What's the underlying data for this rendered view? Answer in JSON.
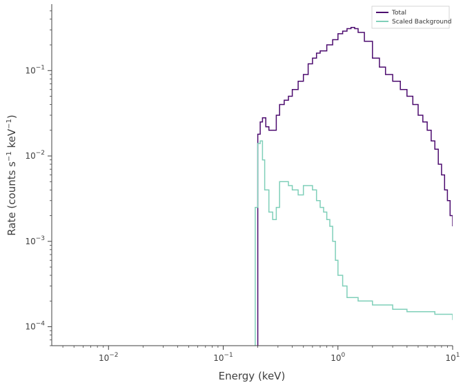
{
  "chart_data": {
    "type": "line",
    "title": "",
    "xlabel": "Energy (keV)",
    "ylabel_parts": [
      "Rate (counts s",
      "−1",
      " keV",
      "−1",
      ")"
    ],
    "x_scale": "log",
    "y_scale": "log",
    "xlim": [
      0.0032,
      10
    ],
    "ylim": [
      6e-05,
      0.6
    ],
    "x_ticks": [
      {
        "value": 0.01,
        "base": "10",
        "exp": "−2"
      },
      {
        "value": 0.1,
        "base": "10",
        "exp": "−1"
      },
      {
        "value": 1,
        "base": "10",
        "exp": "0"
      },
      {
        "value": 10,
        "base": "10",
        "exp": "1"
      }
    ],
    "y_ticks": [
      {
        "value": 0.0001,
        "base": "10",
        "exp": "−4"
      },
      {
        "value": 0.001,
        "base": "10",
        "exp": "−3"
      },
      {
        "value": 0.01,
        "base": "10",
        "exp": "−2"
      },
      {
        "value": 0.1,
        "base": "10",
        "exp": "−1"
      }
    ],
    "grid": false,
    "legend_position": "top-right",
    "series": [
      {
        "name": "Total",
        "color": "#4b0a6e",
        "x": [
          0.2,
          0.21,
          0.22,
          0.235,
          0.25,
          0.27,
          0.29,
          0.31,
          0.34,
          0.37,
          0.4,
          0.45,
          0.5,
          0.55,
          0.6,
          0.65,
          0.7,
          0.8,
          0.9,
          1.0,
          1.1,
          1.2,
          1.3,
          1.4,
          1.5,
          1.7,
          2.0,
          2.3,
          2.6,
          3.0,
          3.5,
          4.0,
          4.5,
          5.0,
          5.5,
          6.0,
          6.5,
          7.0,
          7.5,
          8.0,
          8.5,
          9.0,
          9.5,
          10.0
        ],
        "y": [
          0.018,
          0.025,
          0.028,
          0.022,
          0.02,
          0.02,
          0.03,
          0.04,
          0.045,
          0.05,
          0.06,
          0.075,
          0.09,
          0.12,
          0.14,
          0.16,
          0.17,
          0.2,
          0.23,
          0.27,
          0.29,
          0.31,
          0.32,
          0.31,
          0.28,
          0.22,
          0.14,
          0.11,
          0.09,
          0.075,
          0.06,
          0.05,
          0.04,
          0.03,
          0.025,
          0.02,
          0.015,
          0.012,
          0.008,
          0.006,
          0.004,
          0.003,
          0.002,
          0.0015
        ]
      },
      {
        "name": "Scaled  Background",
        "color": "#7fcfb9",
        "x": [
          0.19,
          0.2,
          0.21,
          0.22,
          0.23,
          0.25,
          0.27,
          0.29,
          0.31,
          0.34,
          0.37,
          0.4,
          0.45,
          0.5,
          0.55,
          0.6,
          0.65,
          0.7,
          0.75,
          0.8,
          0.85,
          0.9,
          0.95,
          1.0,
          1.1,
          1.2,
          1.5,
          2.0,
          3.0,
          4.0,
          5.0,
          7.0,
          10.0
        ],
        "y": [
          0.0025,
          0.014,
          0.015,
          0.009,
          0.004,
          0.0022,
          0.0018,
          0.0025,
          0.005,
          0.005,
          0.0045,
          0.004,
          0.0035,
          0.0045,
          0.0045,
          0.004,
          0.003,
          0.0025,
          0.0022,
          0.0018,
          0.0015,
          0.001,
          0.0006,
          0.0004,
          0.0003,
          0.00022,
          0.0002,
          0.00018,
          0.00016,
          0.00015,
          0.00015,
          0.00014,
          0.00012
        ]
      }
    ]
  }
}
